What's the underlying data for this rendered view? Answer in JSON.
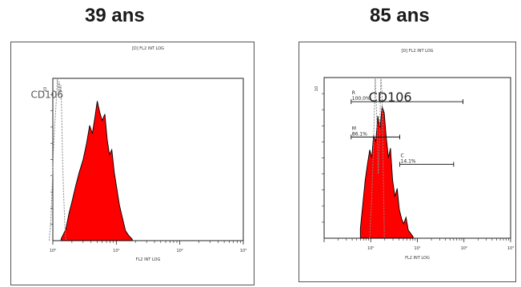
{
  "titles": {
    "left": "39 ans",
    "right": "85 ans"
  },
  "chart_data": [
    {
      "type": "area",
      "panel": "39 ans",
      "title": "[D] FL2 INT LOG",
      "xlabel": "FL2 INT LOG",
      "ylabel": "",
      "x_scale": "log",
      "xlim": [
        1,
        1000
      ],
      "x_ticks": [
        "10⁰",
        "10¹",
        "10²",
        "10³"
      ],
      "y_ticks": [
        "10"
      ],
      "ylim": [
        0,
        10
      ],
      "annotations": [
        {
          "text": "CD106",
          "x": 0.45,
          "y": 8.8
        }
      ],
      "series": [
        {
          "fill": "#ff0000",
          "style": "filled",
          "x": [
            1.35,
            1.6,
            1.8,
            2.0,
            2.3,
            2.6,
            3.0,
            3.4,
            3.8,
            4.2,
            4.6,
            5.0,
            5.5,
            6.0,
            6.6,
            7.2,
            7.8,
            8.5,
            9.3,
            10.2,
            11.2,
            12.5,
            14.0,
            15.8,
            17.8
          ],
          "y": [
            0.1,
            0.7,
            1.7,
            2.4,
            3.4,
            4.2,
            5.0,
            6.0,
            7.1,
            6.6,
            7.6,
            8.6,
            7.9,
            7.4,
            7.8,
            6.2,
            5.3,
            5.6,
            4.2,
            3.2,
            2.2,
            1.4,
            0.6,
            0.3,
            0.1
          ]
        },
        {
          "name": "CD106",
          "color": "#888888",
          "style": "dotted",
          "x": [
            0.88,
            0.93,
            0.98,
            1.02,
            1.06,
            1.1,
            1.14,
            1.18,
            1.22,
            1.26,
            1.3,
            1.34,
            1.38,
            1.42,
            1.47,
            1.52,
            1.56,
            1.6
          ],
          "y": [
            0.1,
            1.2,
            3.5,
            5.5,
            6.8,
            7.8,
            8.8,
            10.0,
            9.2,
            9.8,
            9.1,
            9.6,
            7.8,
            5.2,
            3.1,
            1.8,
            0.6,
            0.1
          ]
        }
      ]
    },
    {
      "type": "area",
      "panel": "85 ans",
      "title": "[D] FL2 INT LOG",
      "xlabel": "FL2 INT LOG",
      "ylabel": "",
      "x_scale": "log",
      "xlim": [
        0.1,
        1000
      ],
      "x_ticks": [
        "10⁰",
        "10¹",
        "10²",
        "10³"
      ],
      "y_ticks": [
        "10"
      ],
      "ylim": [
        0,
        10
      ],
      "annotations": [
        {
          "text": "CD106",
          "x": 0.9,
          "y": 8.5
        }
      ],
      "gates": [
        {
          "label": "R",
          "value": "100.0%",
          "x": [
            0.38,
            95.0
          ],
          "y": 8.5
        },
        {
          "label": "M",
          "value": "86.1%",
          "x": [
            0.38,
            4.2
          ],
          "y": 6.3
        },
        {
          "label": "C",
          "value": "14.1%",
          "x": [
            4.2,
            60.0
          ],
          "y": 4.6
        }
      ],
      "series": [
        {
          "fill": "#ff0000",
          "style": "filled",
          "x": [
            0.6,
            0.68,
            0.76,
            0.85,
            0.95,
            1.05,
            1.15,
            1.28,
            1.42,
            1.58,
            1.75,
            1.95,
            2.15,
            2.4,
            2.65,
            2.95,
            3.3,
            3.7,
            4.1,
            4.6,
            5.1,
            5.7,
            6.4,
            7.2,
            8.1
          ],
          "y": [
            0.6,
            2.2,
            3.6,
            4.6,
            5.5,
            5.0,
            6.4,
            6.0,
            7.6,
            6.8,
            8.2,
            7.8,
            6.3,
            5.0,
            5.6,
            3.6,
            2.6,
            3.1,
            1.8,
            1.2,
            0.9,
            1.3,
            0.5,
            0.3,
            0.1
          ]
        },
        {
          "name": "CD106",
          "color": "#888888",
          "style": "dotted",
          "x": [
            0.95,
            1.05,
            1.15,
            1.25,
            1.35,
            1.45,
            1.55,
            1.65,
            1.75,
            1.85,
            1.95
          ],
          "y": [
            0.1,
            2.5,
            6.0,
            10.0,
            7.5,
            4.0,
            6.5,
            10.0,
            9.0,
            4.5,
            0.5
          ]
        }
      ]
    }
  ]
}
